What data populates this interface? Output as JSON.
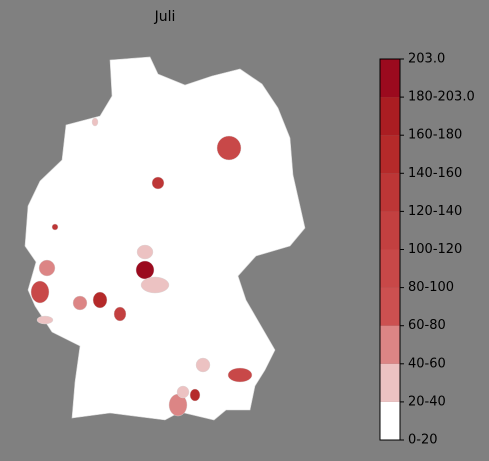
{
  "chart_data": {
    "type": "choropleth",
    "title": "Juli",
    "values": [
      90,
      130,
      190,
      30,
      30,
      90,
      50,
      50,
      140,
      100,
      30,
      90,
      30,
      140,
      50,
      30,
      130,
      30
    ],
    "ticks": [
      {
        "value": 0,
        "label": "0-20"
      },
      {
        "value": 20,
        "label": "20-40"
      },
      {
        "value": 40,
        "label": "40-60"
      },
      {
        "value": 60,
        "label": "60-80"
      },
      {
        "value": 80,
        "label": "80-100"
      },
      {
        "value": 100,
        "label": "100-120"
      },
      {
        "value": 120,
        "label": "120-140"
      },
      {
        "value": 140,
        "label": "140-160"
      },
      {
        "value": 160,
        "label": "160-180"
      },
      {
        "value": 180,
        "label": "180-203.0"
      },
      {
        "value": 203,
        "label": "203.0"
      }
    ],
    "colors": [
      "#ffffff",
      "#ecc2c2",
      "#dc8585",
      "#cc5050",
      "#c84848",
      "#c34040",
      "#bd3636",
      "#b52a2a",
      "#aa1d22",
      "#9b0a1e"
    ]
  }
}
